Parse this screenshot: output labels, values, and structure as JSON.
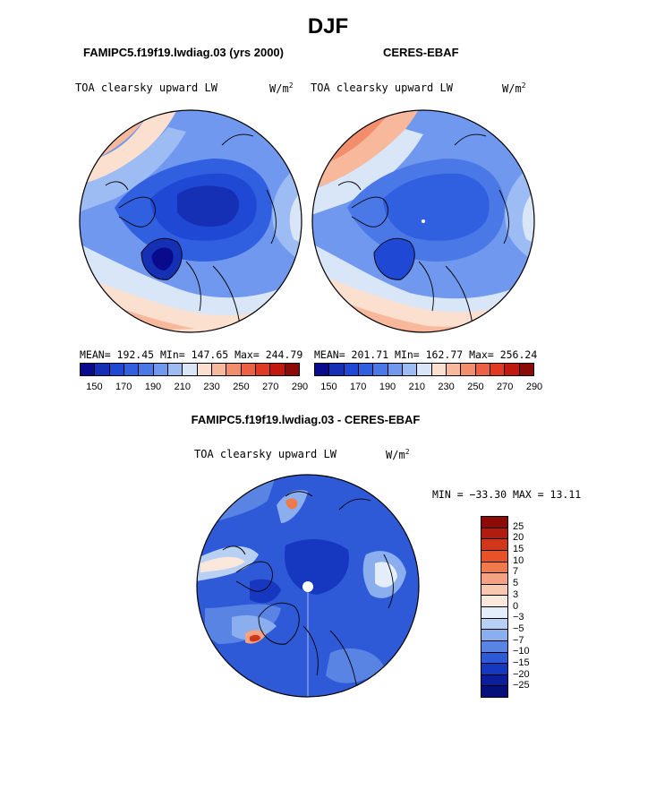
{
  "season": "DJF",
  "panels": {
    "model": {
      "header": "FAMIPC5.f19f19.lwdiag.03 (yrs 2000)",
      "variable": "TOA clearsky upward LW",
      "units": "W/m",
      "units_sup": "2",
      "stats": "MEAN= 192.45   MIn= 147.65   Max= 244.79"
    },
    "obs": {
      "header": "CERES-EBAF",
      "variable": "TOA clearsky upward LW",
      "units": "W/m",
      "units_sup": "2",
      "stats": "MEAN= 201.71   MIn= 162.77   Max= 256.24"
    },
    "diff": {
      "header": "FAMIPC5.f19f19.lwdiag.03 - CERES-EBAF",
      "variable": "TOA clearsky upward LW",
      "units": "W/m",
      "units_sup": "2",
      "stats": "MIN = −33.30  MAX =   13.11"
    }
  },
  "colorbar_abs": {
    "labels": [
      "150",
      "170",
      "190",
      "210",
      "230",
      "250",
      "270",
      "290"
    ],
    "colors": [
      "#0a0a8c",
      "#1530b4",
      "#1f48d4",
      "#3060e0",
      "#4a78e6",
      "#6f98ee",
      "#9dbcf4",
      "#d8e6f8",
      "#fbe0d0",
      "#f7b89c",
      "#f38e6c",
      "#ec6044",
      "#e03a22",
      "#c01a10",
      "#8c0a08"
    ]
  },
  "colorbar_diff": {
    "labels": [
      "25",
      "20",
      "15",
      "10",
      "7",
      "5",
      "3",
      "0",
      "−3",
      "−5",
      "−7",
      "−10",
      "−15",
      "−20",
      "−25"
    ],
    "colors": [
      "#8c0a08",
      "#b01c10",
      "#d0361a",
      "#e85226",
      "#f07a4c",
      "#f5a282",
      "#f8c8b0",
      "#fbe8dc",
      "#e4eefa",
      "#b8d0f4",
      "#8aaeee",
      "#5a84e4",
      "#2e5ad8",
      "#1638c0",
      "#0c1e9c",
      "#06107a"
    ]
  }
}
